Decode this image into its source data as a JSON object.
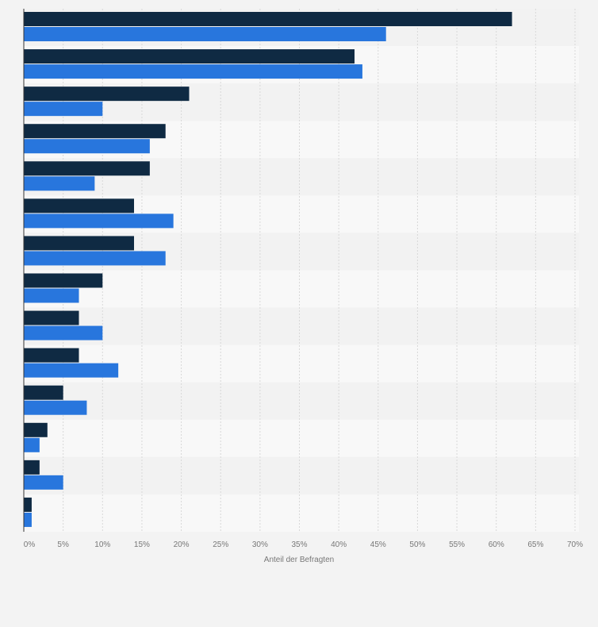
{
  "chart_data": {
    "type": "bar",
    "orientation": "horizontal",
    "title": "",
    "xlabel": "Anteil der Befragten",
    "ylabel": "",
    "xlim": [
      0,
      70
    ],
    "x_ticks": [
      "0%",
      "5%",
      "10%",
      "15%",
      "20%",
      "25%",
      "30%",
      "35%",
      "40%",
      "45%",
      "50%",
      "55%",
      "60%",
      "65%",
      "70%"
    ],
    "grid": true,
    "legend": "none",
    "colors": [
      "#0f2a43",
      "#2876dd"
    ],
    "series": [
      {
        "values": [
          62,
          42,
          21,
          18,
          16,
          14,
          14,
          10,
          7,
          7,
          5,
          3,
          2,
          1
        ]
      },
      {
        "values": [
          46,
          43,
          10,
          16,
          9,
          19,
          18,
          7,
          10,
          12,
          8,
          2,
          5,
          1
        ]
      }
    ]
  }
}
